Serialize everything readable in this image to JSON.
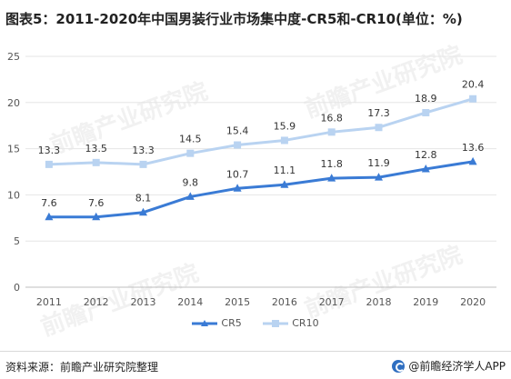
{
  "title": "图表5：2011-2020年中国男装行业市场集中度-CR5和-CR10(单位：%)",
  "source": "资料来源：前瞻产业研究院整理",
  "brand": "@前瞻经济学人APP",
  "watermark": "前瞻产业研究院",
  "chart_data": {
    "type": "line",
    "title": "图表5：2011-2020年中国男装行业市场集中度-CR5和-CR10(单位：%)",
    "x": [
      "2011",
      "2012",
      "2013",
      "2014",
      "2015",
      "2016",
      "2017",
      "2018",
      "2019",
      "2020"
    ],
    "ylim": [
      0,
      25
    ],
    "yticks": [
      "0",
      "5",
      "10",
      "15",
      "20",
      "25"
    ],
    "grid": "horizontal",
    "legend": "bottom",
    "series": [
      {
        "name": "CR5",
        "color": "#3a7bd5",
        "marker": "triangle",
        "values": [
          7.6,
          7.6,
          8.1,
          9.8,
          10.7,
          11.1,
          11.8,
          11.9,
          12.8,
          13.6
        ],
        "labels": [
          "7.6",
          "7.6",
          "8.1",
          "9.8",
          "10.7",
          "11.1",
          "11.8",
          "11.9",
          "12.8",
          "13.6"
        ]
      },
      {
        "name": "CR10",
        "color": "#b9d3f1",
        "marker": "square",
        "values": [
          13.3,
          13.5,
          13.3,
          14.5,
          15.4,
          15.9,
          16.8,
          17.3,
          18.9,
          20.4
        ],
        "labels": [
          "13.3",
          "13.5",
          "13.3",
          "14.5",
          "15.4",
          "15.9",
          "16.8",
          "17.3",
          "18.9",
          "20.4"
        ]
      }
    ]
  }
}
